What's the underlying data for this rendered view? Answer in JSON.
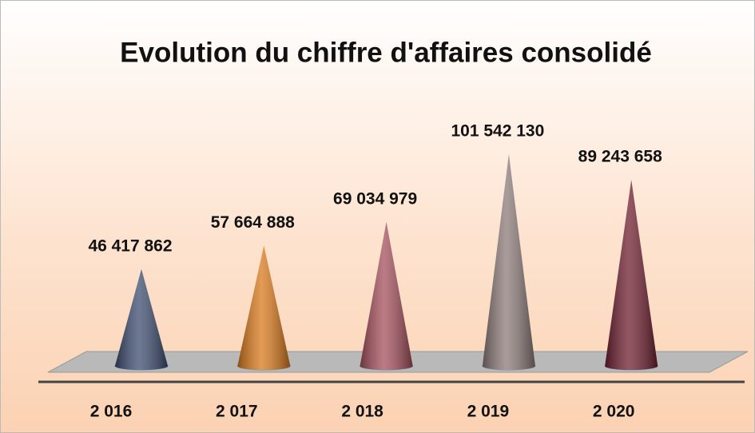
{
  "chart_data": {
    "type": "cone",
    "title": "Evolution du chiffre d'affaires consolidé",
    "categories": [
      "2 016",
      "2 017",
      "2 018",
      "2 019",
      "2 020"
    ],
    "values": [
      46417862,
      57664888,
      69034979,
      101542130,
      89243658
    ],
    "value_labels": [
      "46 417 862",
      "57 664 888",
      "69 034 979",
      "101 542 130",
      "89 243 658"
    ],
    "colors": [
      "#3d4d70",
      "#d9791c",
      "#a44f5c",
      "#8c7b79",
      "#6e1f30"
    ]
  }
}
